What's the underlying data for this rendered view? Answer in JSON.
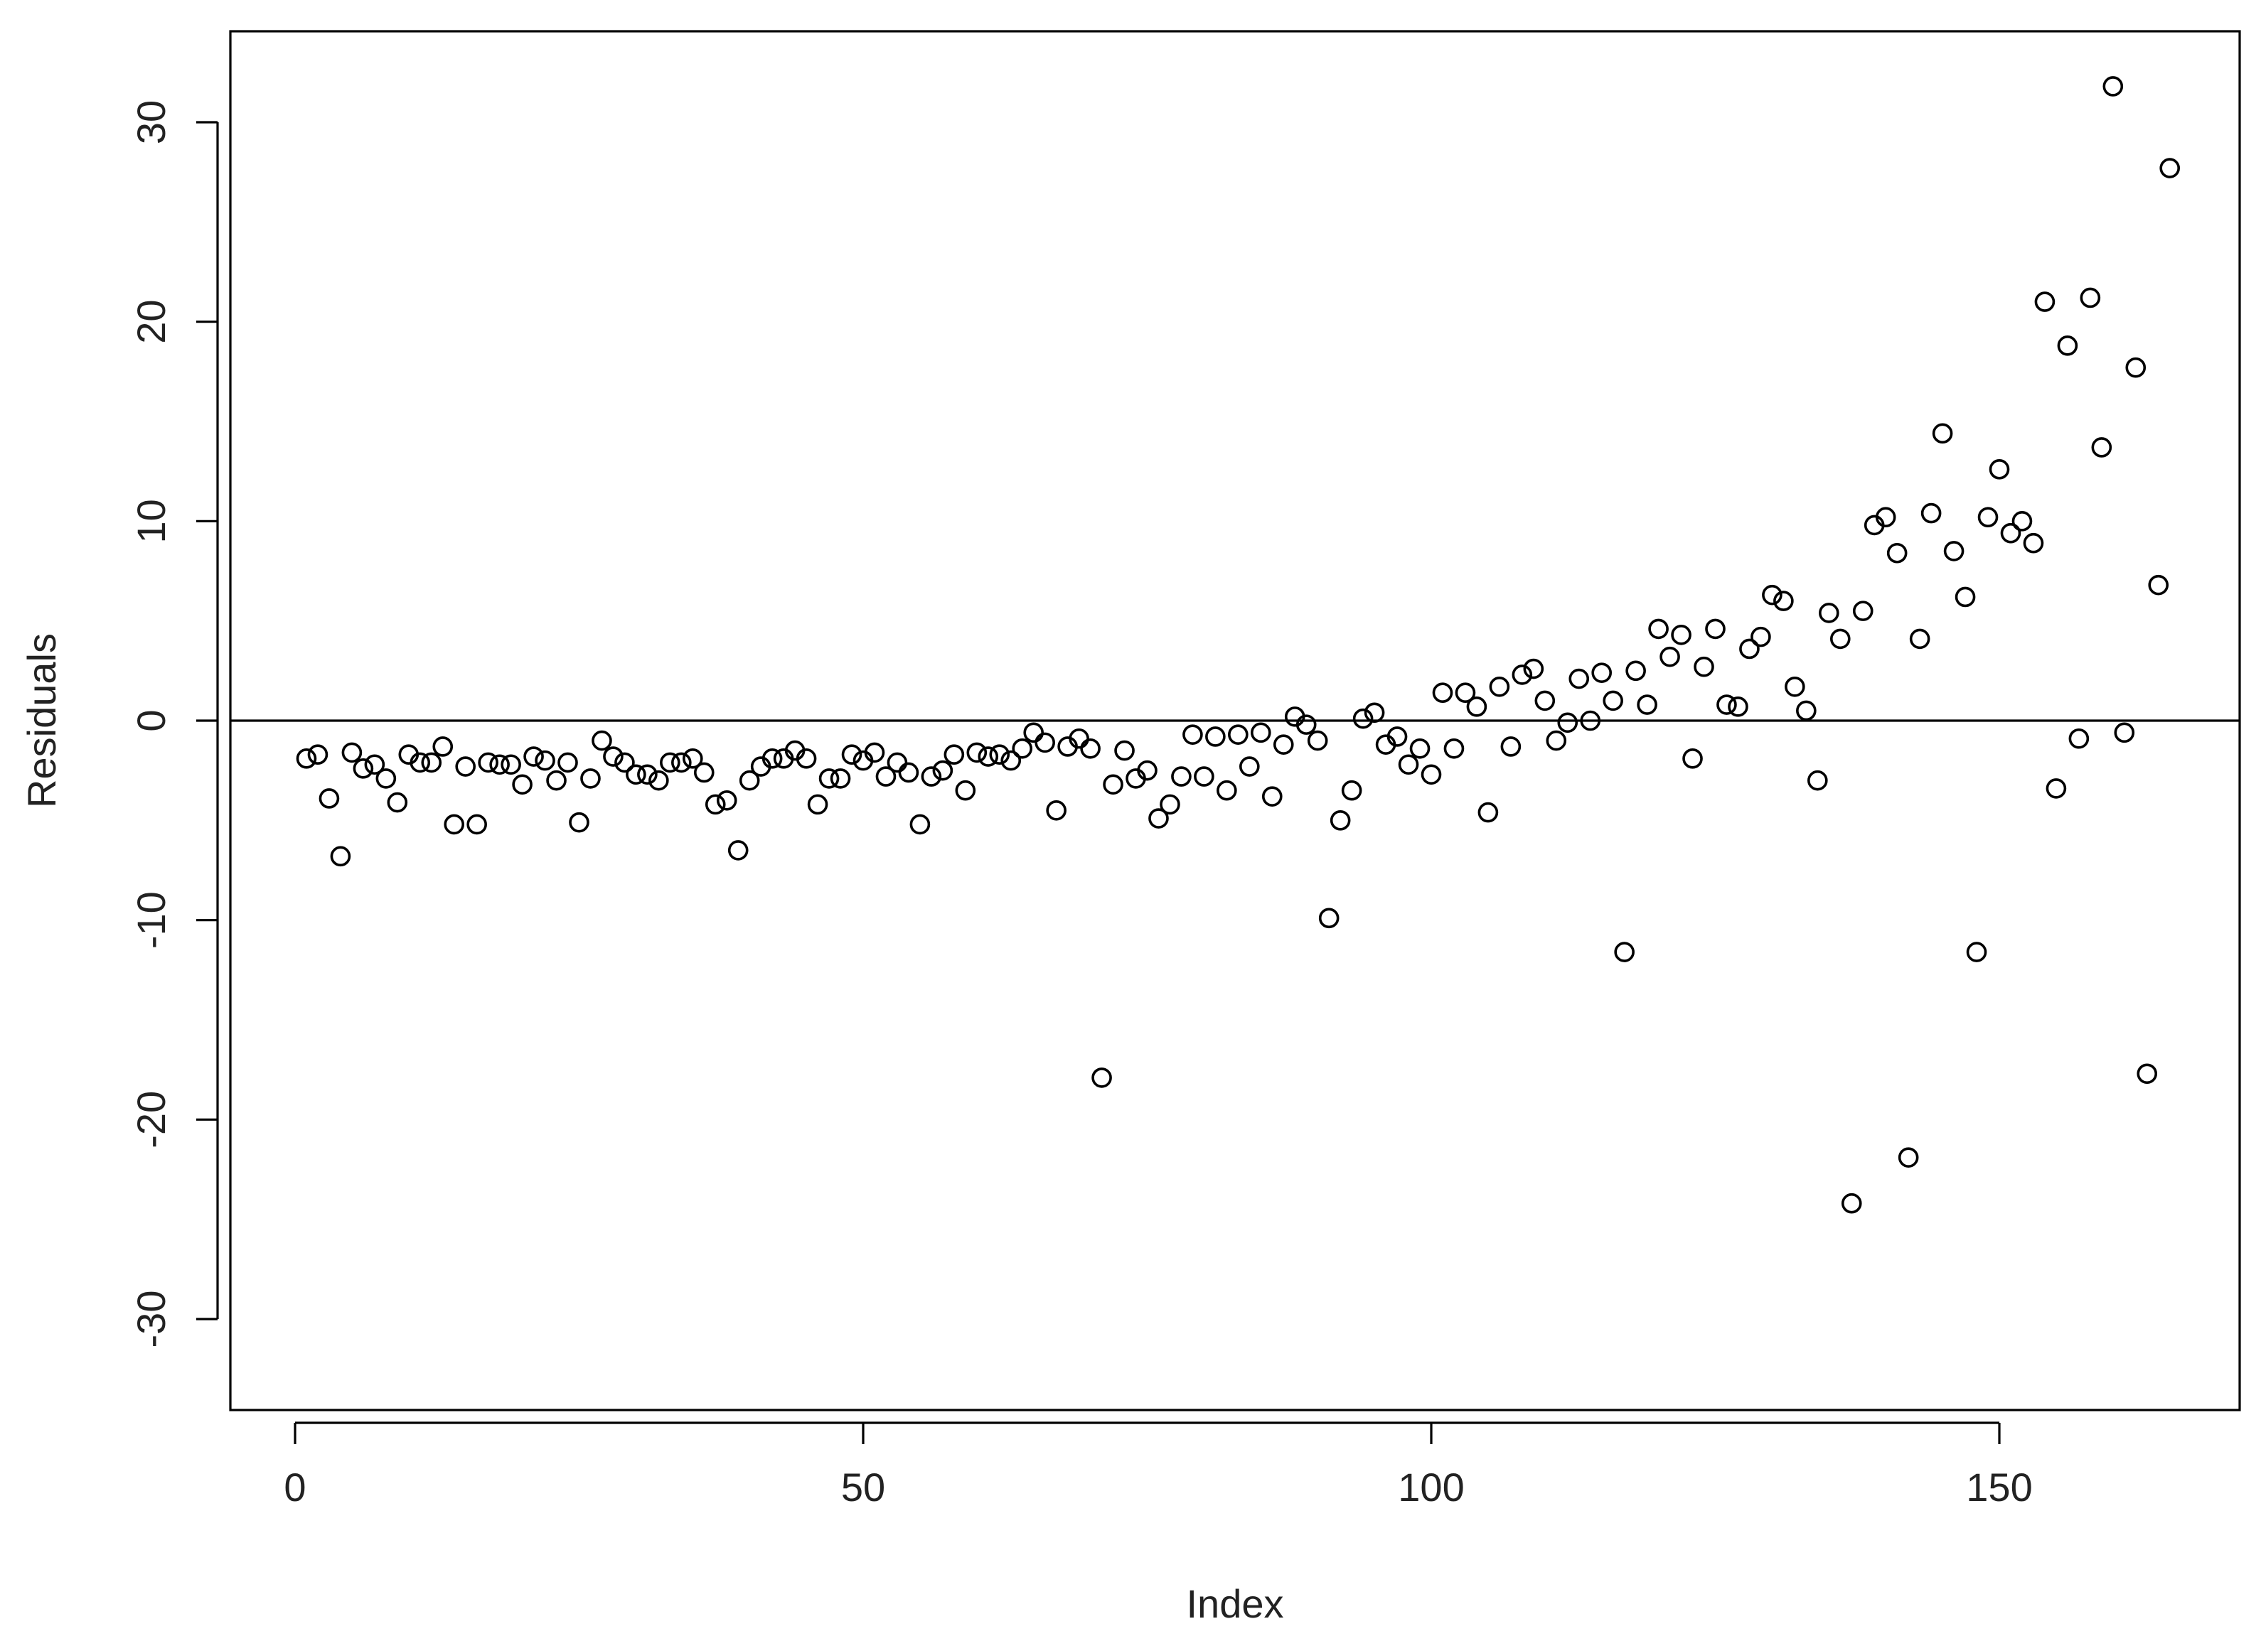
{
  "chart_data": {
    "type": "scatter",
    "title": "",
    "xlabel": "Index",
    "ylabel": "Residuals",
    "xlim": [
      0,
      170
    ],
    "ylim": [
      -34.5,
      34.5
    ],
    "x_ticks": [
      0,
      50,
      100,
      150
    ],
    "x_tick_labels": [
      "0",
      "50",
      "100",
      "150"
    ],
    "y_ticks": [
      -30,
      -20,
      -10,
      0,
      10,
      20,
      30
    ],
    "y_tick_labels": [
      "-30",
      "-20",
      "-10",
      "0",
      "10",
      "20",
      "30"
    ],
    "grid": false,
    "legend": "none",
    "reference_line": {
      "orientation": "horizontal",
      "y": 0
    },
    "point_style": "open-circle",
    "series": [
      {
        "x": [
          1,
          2,
          3,
          4,
          5,
          6,
          7,
          8,
          9,
          10,
          11,
          12,
          13,
          14,
          15,
          16,
          17,
          18,
          19,
          20,
          21,
          22,
          23,
          24,
          25,
          26,
          27,
          28,
          29,
          30,
          31,
          32,
          33,
          34,
          35,
          36,
          37,
          38,
          39,
          40,
          41,
          42,
          43,
          44,
          45,
          46,
          47,
          48,
          49,
          50,
          51,
          52,
          53,
          54,
          55,
          56,
          57,
          58,
          59,
          60,
          61,
          62,
          63,
          64,
          65,
          66,
          67,
          68,
          69,
          70,
          71,
          72,
          73,
          74,
          75,
          76,
          77,
          78,
          79,
          80,
          81,
          82,
          83,
          84,
          85,
          86,
          87,
          88,
          89,
          90,
          91,
          92,
          93,
          94,
          95,
          96,
          97,
          98,
          99,
          100,
          101,
          102,
          103,
          104,
          105,
          106,
          107,
          108,
          109,
          110,
          111,
          112,
          113,
          114,
          115,
          116,
          117,
          118,
          119,
          120,
          121,
          122,
          123,
          124,
          125,
          126,
          127,
          128,
          129,
          130,
          131,
          132,
          133,
          134,
          135,
          136,
          137,
          138,
          139,
          140,
          141,
          142,
          143,
          144,
          145,
          146,
          147,
          148,
          149,
          150,
          151,
          152,
          153,
          154,
          155,
          156,
          157,
          158,
          159,
          160,
          161,
          162,
          163,
          164,
          165
        ],
        "y": [
          -1.9,
          -1.7,
          -3.9,
          -6.8,
          -1.6,
          -2.4,
          -2.2,
          -2.9,
          -4.1,
          -1.7,
          -2.1,
          -2.1,
          -1.3,
          -5.2,
          -2.3,
          -5.2,
          -2.1,
          -2.2,
          -2.2,
          -3.2,
          -1.8,
          -2.0,
          -3.0,
          -2.1,
          -5.1,
          -2.9,
          -1.0,
          -1.8,
          -2.1,
          -2.7,
          -2.7,
          -3.0,
          -2.1,
          -2.1,
          -1.9,
          -2.6,
          -4.2,
          -4.0,
          -6.5,
          -3.0,
          -2.3,
          -1.9,
          -1.9,
          -1.5,
          -1.9,
          -4.2,
          -2.9,
          -2.9,
          -1.7,
          -2.0,
          -1.6,
          -2.8,
          -2.1,
          -2.6,
          -5.2,
          -2.8,
          -2.5,
          -1.7,
          -3.5,
          -1.6,
          -1.8,
          -1.7,
          -2.0,
          -1.4,
          -0.6,
          -1.1,
          -4.5,
          -1.3,
          -0.9,
          -1.4,
          -17.9,
          -3.2,
          -1.5,
          -2.9,
          -2.5,
          -4.9,
          -4.2,
          -2.8,
          -0.7,
          -2.8,
          -0.8,
          -3.5,
          -0.7,
          -2.3,
          -0.6,
          -3.8,
          -1.2,
          0.2,
          -0.2,
          -1.0,
          -9.9,
          -5.0,
          -3.5,
          0.1,
          0.4,
          -1.2,
          -0.8,
          -2.2,
          -1.4,
          -2.7,
          1.4,
          -1.4,
          1.4,
          0.7,
          -4.6,
          1.7,
          -1.3,
          2.3,
          2.6,
          1.0,
          -1.0,
          -0.1,
          2.1,
          0.0,
          2.4,
          1.0,
          -11.6,
          2.5,
          0.8,
          4.6,
          3.2,
          4.3,
          -1.9,
          2.7,
          4.6,
          0.8,
          0.7,
          3.6,
          4.2,
          6.3,
          6.0,
          1.7,
          0.5,
          -3.0,
          5.4,
          4.1,
          -24.2,
          5.5,
          9.8,
          10.2,
          8.4,
          -21.9,
          4.1,
          10.4,
          14.4,
          8.5,
          6.2,
          -11.6,
          10.2,
          12.6,
          9.4,
          10.0,
          8.9,
          21.0,
          -3.4,
          18.8,
          -0.9,
          21.2,
          13.7,
          31.8,
          -0.6,
          17.7,
          -17.7,
          6.8,
          27.7
        ]
      }
    ]
  }
}
